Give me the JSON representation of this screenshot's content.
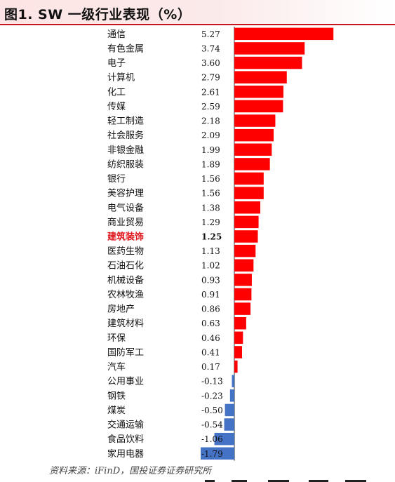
{
  "header": {
    "title": "图1. SW 一级行业表现（%）"
  },
  "source": "资料来源：iFinD，国投证券证券研究所",
  "colors": {
    "positive": "#ff0000",
    "negative": "#4472c4",
    "highlight_text": "#e0161d",
    "axis": "#333333"
  },
  "chart_data": {
    "type": "bar",
    "orientation": "horizontal",
    "title": "图1. SW 一级行业表现（%）",
    "xlabel": "",
    "ylabel": "",
    "xlim": [
      -1.79,
      5.27
    ],
    "grid": false,
    "legend": "none",
    "highlight": "建筑装饰",
    "categories": [
      "通信",
      "有色金属",
      "电子",
      "计算机",
      "化工",
      "传媒",
      "轻工制造",
      "社会服务",
      "非银金融",
      "纺织服装",
      "银行",
      "美容护理",
      "电气设备",
      "商业贸易",
      "建筑装饰",
      "医药生物",
      "石油石化",
      "机械设备",
      "农林牧渔",
      "房地产",
      "建筑材料",
      "环保",
      "国防军工",
      "汽车",
      "公用事业",
      "钢铁",
      "煤炭",
      "交通运输",
      "食品饮料",
      "家用电器"
    ],
    "values": [
      5.27,
      3.74,
      3.6,
      2.79,
      2.61,
      2.59,
      2.18,
      2.09,
      1.99,
      1.89,
      1.56,
      1.56,
      1.38,
      1.29,
      1.25,
      1.13,
      1.02,
      0.93,
      0.91,
      0.86,
      0.63,
      0.46,
      0.41,
      0.17,
      -0.13,
      -0.23,
      -0.5,
      -0.54,
      -1.06,
      -1.79
    ],
    "value_labels": [
      "5.27",
      "3.74",
      "3.60",
      "2.79",
      "2.61",
      "2.59",
      "2.18",
      "2.09",
      "1.99",
      "1.89",
      "1.56",
      "1.56",
      "1.38",
      "1.29",
      "1.25",
      "1.13",
      "1.02",
      "0.93",
      "0.91",
      "0.86",
      "0.63",
      "0.46",
      "0.41",
      "0.17",
      "-0.13",
      "-0.23",
      "-0.50",
      "-0.54",
      "-1.06",
      "-1.79"
    ]
  }
}
